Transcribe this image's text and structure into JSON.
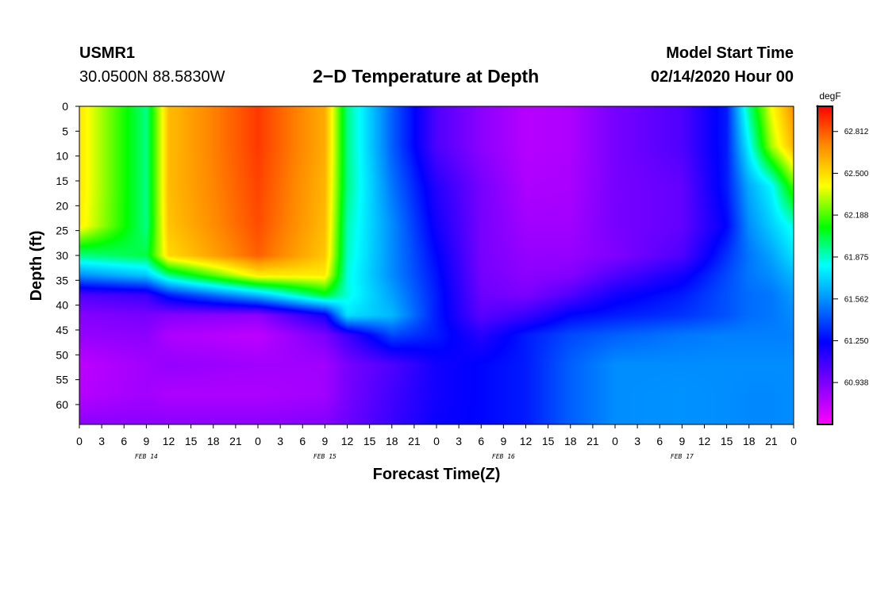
{
  "header": {
    "station": "USMR1",
    "coords": "30.0500N 88.5830W",
    "title": "2−D Temperature at Depth",
    "model_start_label": "Model Start Time",
    "model_start_value": "02/14/2020 Hour 00"
  },
  "chart_data": {
    "type": "heatmap",
    "title": "2−D Temperature at Depth",
    "xlabel": "Forecast Time(Z)",
    "ylabel": "Depth (ft)",
    "x_tick_labels": [
      "0",
      "3",
      "6",
      "9",
      "12",
      "15",
      "18",
      "21",
      "0",
      "3",
      "6",
      "9",
      "12",
      "15",
      "18",
      "21",
      "0",
      "3",
      "6",
      "9",
      "12",
      "15",
      "18",
      "21",
      "0",
      "3",
      "6",
      "9",
      "12",
      "15",
      "18",
      "21",
      "0"
    ],
    "x_hours_range": [
      0,
      96
    ],
    "date_labels": [
      {
        "label": "FEB 14",
        "hour": 9
      },
      {
        "label": "FEB 15",
        "hour": 33
      },
      {
        "label": "FEB 16",
        "hour": 57
      },
      {
        "label": "FEB 17",
        "hour": 81
      }
    ],
    "y_tick_labels": [
      "0",
      "5",
      "10",
      "15",
      "20",
      "25",
      "30",
      "35",
      "40",
      "45",
      "50",
      "55",
      "60"
    ],
    "y_ticks": [
      0,
      5,
      10,
      15,
      20,
      25,
      30,
      35,
      40,
      45,
      50,
      55,
      60
    ],
    "ylim": [
      0,
      64
    ],
    "y_inverted": true,
    "colorbar": {
      "unit": "degF",
      "labels": [
        "62.812",
        "62.500",
        "62.188",
        "61.875",
        "61.562",
        "61.250",
        "60.938"
      ],
      "values": [
        62.812,
        62.5,
        62.188,
        61.875,
        61.562,
        61.25,
        60.938
      ],
      "range": [
        60.625,
        63.0
      ]
    },
    "grid_hours": [
      0,
      9,
      12,
      24,
      33,
      36,
      42,
      48,
      54,
      60,
      66,
      72,
      81,
      87,
      90,
      93,
      96
    ],
    "grid_depths": [
      0,
      8,
      16,
      24,
      30,
      34,
      38,
      42,
      46,
      52,
      58,
      64
    ],
    "temperature_degF": [
      [
        62.47,
        61.95,
        62.58,
        62.88,
        62.62,
        61.95,
        61.45,
        61.05,
        60.9,
        60.8,
        60.82,
        60.95,
        61.05,
        61.3,
        61.95,
        62.4,
        62.7
      ],
      [
        62.47,
        61.95,
        62.58,
        62.88,
        62.62,
        61.95,
        61.45,
        61.05,
        60.9,
        60.8,
        60.82,
        60.95,
        61.05,
        61.3,
        61.8,
        62.3,
        62.6
      ],
      [
        62.47,
        61.95,
        62.58,
        62.86,
        62.6,
        61.95,
        61.5,
        61.15,
        60.95,
        60.82,
        60.83,
        60.95,
        61.0,
        61.3,
        61.62,
        61.8,
        62.2
      ],
      [
        62.45,
        61.95,
        62.56,
        62.84,
        62.58,
        61.9,
        61.55,
        61.2,
        60.95,
        60.85,
        60.85,
        60.95,
        61.0,
        61.25,
        61.55,
        61.7,
        61.85
      ],
      [
        61.95,
        62.02,
        62.5,
        62.8,
        62.55,
        61.88,
        61.55,
        61.25,
        60.95,
        60.88,
        60.88,
        60.93,
        61.05,
        61.35,
        61.5,
        61.6,
        61.75
      ],
      [
        61.55,
        61.68,
        61.95,
        62.45,
        62.45,
        61.85,
        61.55,
        61.28,
        60.96,
        60.9,
        60.92,
        61.05,
        61.2,
        61.4,
        61.5,
        61.55,
        61.65
      ],
      [
        61.05,
        61.1,
        61.3,
        61.65,
        62.05,
        61.85,
        61.6,
        61.3,
        60.98,
        60.94,
        61.05,
        61.2,
        61.3,
        61.42,
        61.48,
        61.5,
        61.58
      ],
      [
        60.92,
        60.95,
        60.92,
        60.9,
        61.2,
        61.75,
        61.65,
        61.3,
        61.02,
        61.1,
        61.25,
        61.3,
        61.35,
        61.42,
        61.48,
        61.5,
        61.55
      ],
      [
        60.88,
        60.9,
        60.82,
        60.78,
        60.95,
        61.1,
        61.4,
        61.3,
        61.15,
        61.3,
        61.4,
        61.45,
        61.5,
        61.52,
        61.52,
        61.52,
        61.52
      ],
      [
        60.78,
        60.85,
        60.88,
        60.85,
        60.85,
        60.95,
        61.05,
        61.2,
        61.25,
        61.3,
        61.45,
        61.55,
        61.55,
        61.55,
        61.55,
        61.55,
        61.55
      ],
      [
        60.8,
        60.85,
        60.82,
        60.82,
        60.85,
        60.95,
        61.08,
        61.2,
        61.25,
        61.3,
        61.45,
        61.55,
        61.56,
        61.55,
        61.54,
        61.54,
        61.55
      ],
      [
        60.9,
        60.9,
        60.9,
        60.9,
        60.92,
        60.98,
        61.1,
        61.22,
        61.25,
        61.3,
        61.45,
        61.55,
        61.56,
        61.55,
        61.54,
        61.54,
        61.55
      ]
    ]
  }
}
